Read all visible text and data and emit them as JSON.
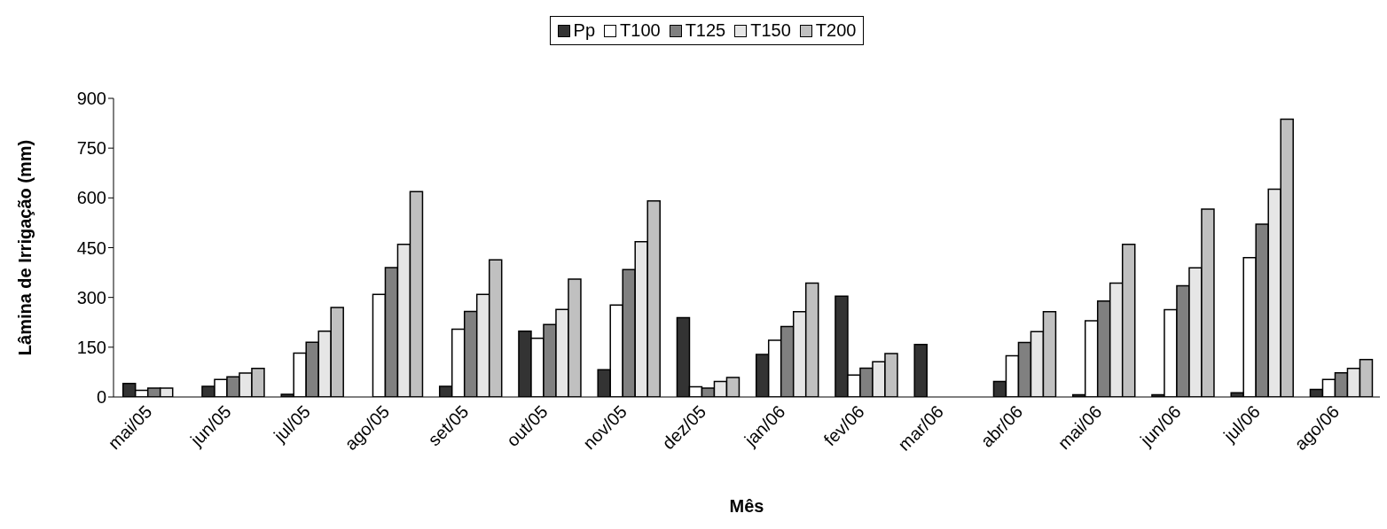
{
  "chart_data": {
    "type": "bar",
    "xlabel": "Mês",
    "ylabel": "Lâmina de Irrigação (mm)",
    "categories": [
      "mai/05",
      "jun/05",
      "jul/05",
      "ago/05",
      "set/05",
      "out/05",
      "nov/05",
      "dez/05",
      "jan/06",
      "fev/06",
      "mar/06",
      "abr/06",
      "mai/06",
      "jun/06",
      "jul/06",
      "ago/06"
    ],
    "series": [
      {
        "name": "Pp",
        "color": "#333333",
        "values": [
          41,
          32,
          8,
          null,
          32,
          198,
          82,
          239,
          128,
          304,
          158,
          47,
          7,
          7,
          13,
          23
        ]
      },
      {
        "name": "T100",
        "color": "#ffffff",
        "values": [
          20,
          53,
          132,
          309,
          204,
          177,
          277,
          31,
          171,
          66,
          null,
          124,
          230,
          263,
          420,
          53
        ]
      },
      {
        "name": "T125",
        "color": "#808080",
        "values": [
          27,
          61,
          165,
          390,
          258,
          218,
          384,
          27,
          212,
          87,
          null,
          164,
          289,
          335,
          521,
          73
        ]
      },
      {
        "name": "T150",
        "color": "#e6e6e6",
        "values": [
          27,
          72,
          198,
          460,
          309,
          264,
          468,
          47,
          257,
          106,
          null,
          197,
          343,
          389,
          626,
          86
        ]
      },
      {
        "name": "T200",
        "color": "#c0c0c0",
        "values": [
          null,
          86,
          270,
          619,
          413,
          355,
          591,
          59,
          343,
          131,
          null,
          257,
          460,
          566,
          837,
          113
        ]
      }
    ],
    "ylim": [
      0,
      900
    ],
    "yticks": [
      0,
      150,
      300,
      450,
      600,
      750,
      900
    ],
    "grid": false,
    "legend": "top"
  }
}
